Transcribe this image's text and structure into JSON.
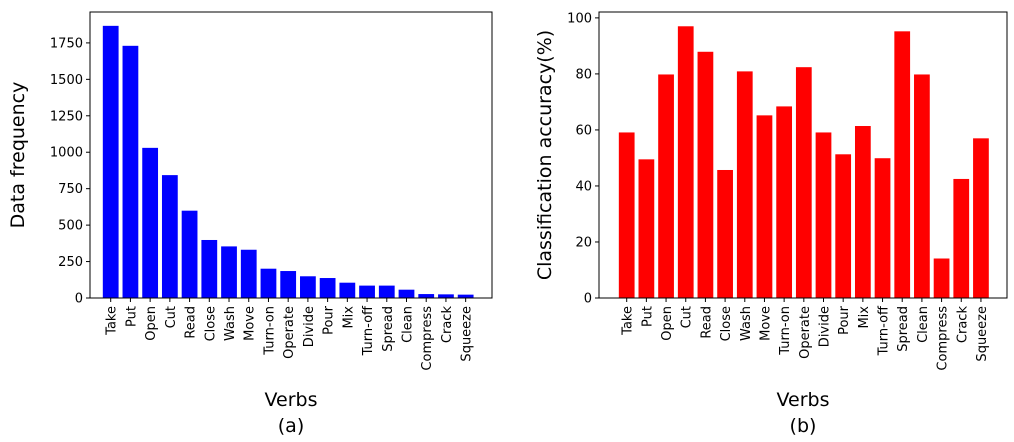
{
  "chart_data": [
    {
      "type": "bar",
      "title": "",
      "caption": "(a)",
      "xlabel": "Verbs",
      "ylabel": "Data frequency",
      "color": "#0000ff",
      "categories": [
        "Take",
        "Put",
        "Open",
        "Cut",
        "Read",
        "Close",
        "Wash",
        "Move",
        "Turn-on",
        "Operate",
        "Divide",
        "Pour",
        "Mix",
        "Turn-off",
        "Spread",
        "Clean",
        "Compress",
        "Crack",
        "Squeeze"
      ],
      "values": [
        1867,
        1730,
        1030,
        843,
        599,
        398,
        354,
        331,
        201,
        185,
        149,
        137,
        105,
        85,
        85,
        57,
        27,
        25,
        23
      ],
      "ylim": [
        0,
        1962
      ],
      "yticks": [
        0,
        250,
        500,
        750,
        1000,
        1250,
        1500,
        1750
      ],
      "grid": false
    },
    {
      "type": "bar",
      "title": "",
      "caption": "(b)",
      "xlabel": "Verbs",
      "ylabel": "Classification accuracy(%)",
      "color": "#ff0000",
      "categories": [
        "Take",
        "Put",
        "Open",
        "Cut",
        "Read",
        "Close",
        "Wash",
        "Move",
        "Turn-on",
        "Operate",
        "Divide",
        "Pour",
        "Mix",
        "Turn-off",
        "Spread",
        "Clean",
        "Compress",
        "Crack",
        "Squeeze"
      ],
      "values": [
        59.1,
        49.5,
        79.8,
        97.0,
        87.9,
        45.7,
        80.9,
        65.2,
        68.4,
        82.4,
        59.1,
        51.3,
        61.4,
        49.9,
        95.2,
        79.8,
        14.1,
        42.5,
        57.0
      ],
      "ylim": [
        0,
        102.1
      ],
      "yticks": [
        0,
        20,
        40,
        60,
        80,
        100
      ],
      "grid": false
    }
  ]
}
